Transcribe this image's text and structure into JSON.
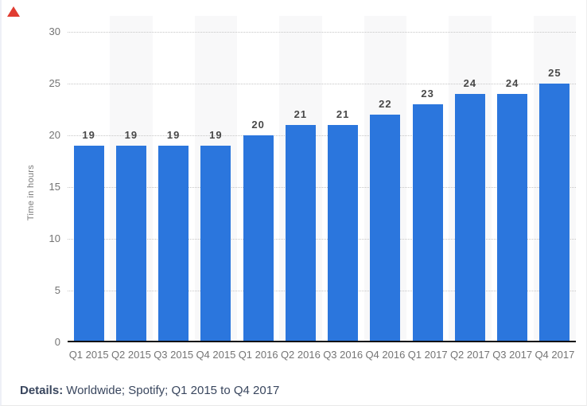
{
  "page": {
    "corner_marker": {
      "shape": "triangle-up",
      "color": "#e03c31"
    },
    "details": {
      "label": "Details:",
      "text": "Worldwide; Spotify; Q1 2015 to Q4 2017"
    }
  },
  "chart_data": {
    "type": "bar",
    "title": "",
    "categories": [
      "Q1 2015",
      "Q2 2015",
      "Q3 2015",
      "Q4 2015",
      "Q1 2016",
      "Q2 2016",
      "Q3 2016",
      "Q4 2016",
      "Q1 2017",
      "Q2 2017",
      "Q3 2017",
      "Q4 2017"
    ],
    "values": [
      19,
      19,
      19,
      19,
      20,
      21,
      21,
      22,
      23,
      24,
      24,
      25
    ],
    "xlabel": "",
    "ylabel": "Time in hours",
    "ylim": [
      0,
      30
    ],
    "yticks": [
      0,
      5,
      10,
      15,
      20,
      25,
      30
    ],
    "grid": "horizontal-dotted",
    "legend": "none",
    "value_labels_shown": true,
    "bar_color": "#2b76dd",
    "alt_column_color": "#f8f8f9",
    "axis_line_color": "#111111"
  }
}
